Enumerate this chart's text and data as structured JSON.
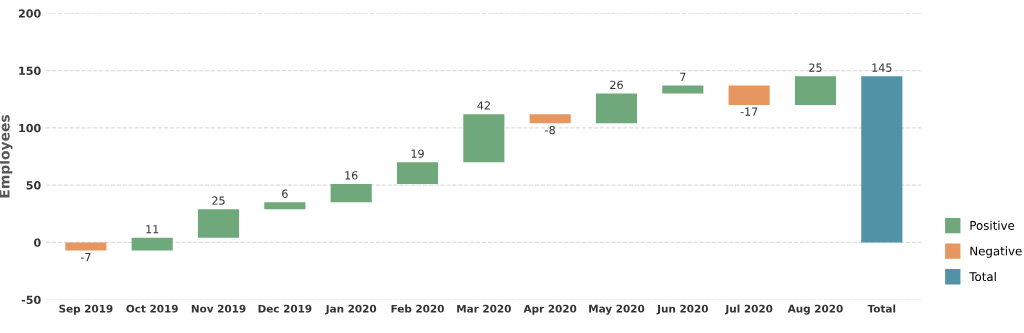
{
  "chart_data": {
    "type": "bar",
    "ylabel": "Employees",
    "categories": [
      "Sep 2019",
      "Oct 2019",
      "Nov 2019",
      "Dec 2019",
      "Jan 2020",
      "Feb 2020",
      "Mar 2020",
      "Apr 2020",
      "May 2020",
      "Jun 2020",
      "Jul 2020",
      "Aug 2020",
      "Total"
    ],
    "series": [
      {
        "name": "Positive",
        "color": "#6fa87a",
        "values": [
          null,
          11,
          25,
          6,
          16,
          19,
          42,
          null,
          26,
          7,
          null,
          25,
          null
        ],
        "base": [
          null,
          -7,
          4,
          29,
          35,
          51,
          70,
          null,
          104,
          130,
          null,
          120,
          null
        ]
      },
      {
        "name": "Negative",
        "color": "#e8965f",
        "values": [
          -7,
          null,
          null,
          null,
          null,
          null,
          null,
          -8,
          null,
          null,
          -17,
          null,
          null
        ],
        "base": [
          0,
          null,
          null,
          null,
          null,
          null,
          null,
          112,
          null,
          null,
          137,
          null,
          null
        ]
      },
      {
        "name": "Total",
        "color": "#5193a6",
        "values": [
          null,
          null,
          null,
          null,
          null,
          null,
          null,
          null,
          null,
          null,
          null,
          null,
          145
        ],
        "base": [
          null,
          null,
          null,
          null,
          null,
          null,
          null,
          null,
          null,
          null,
          null,
          null,
          0
        ]
      }
    ],
    "ylim": [
      -50,
      200
    ],
    "yticks": [
      -50,
      0,
      50,
      100,
      150,
      200
    ],
    "grid": "y",
    "legend": "bottom right",
    "data_labels": true
  }
}
